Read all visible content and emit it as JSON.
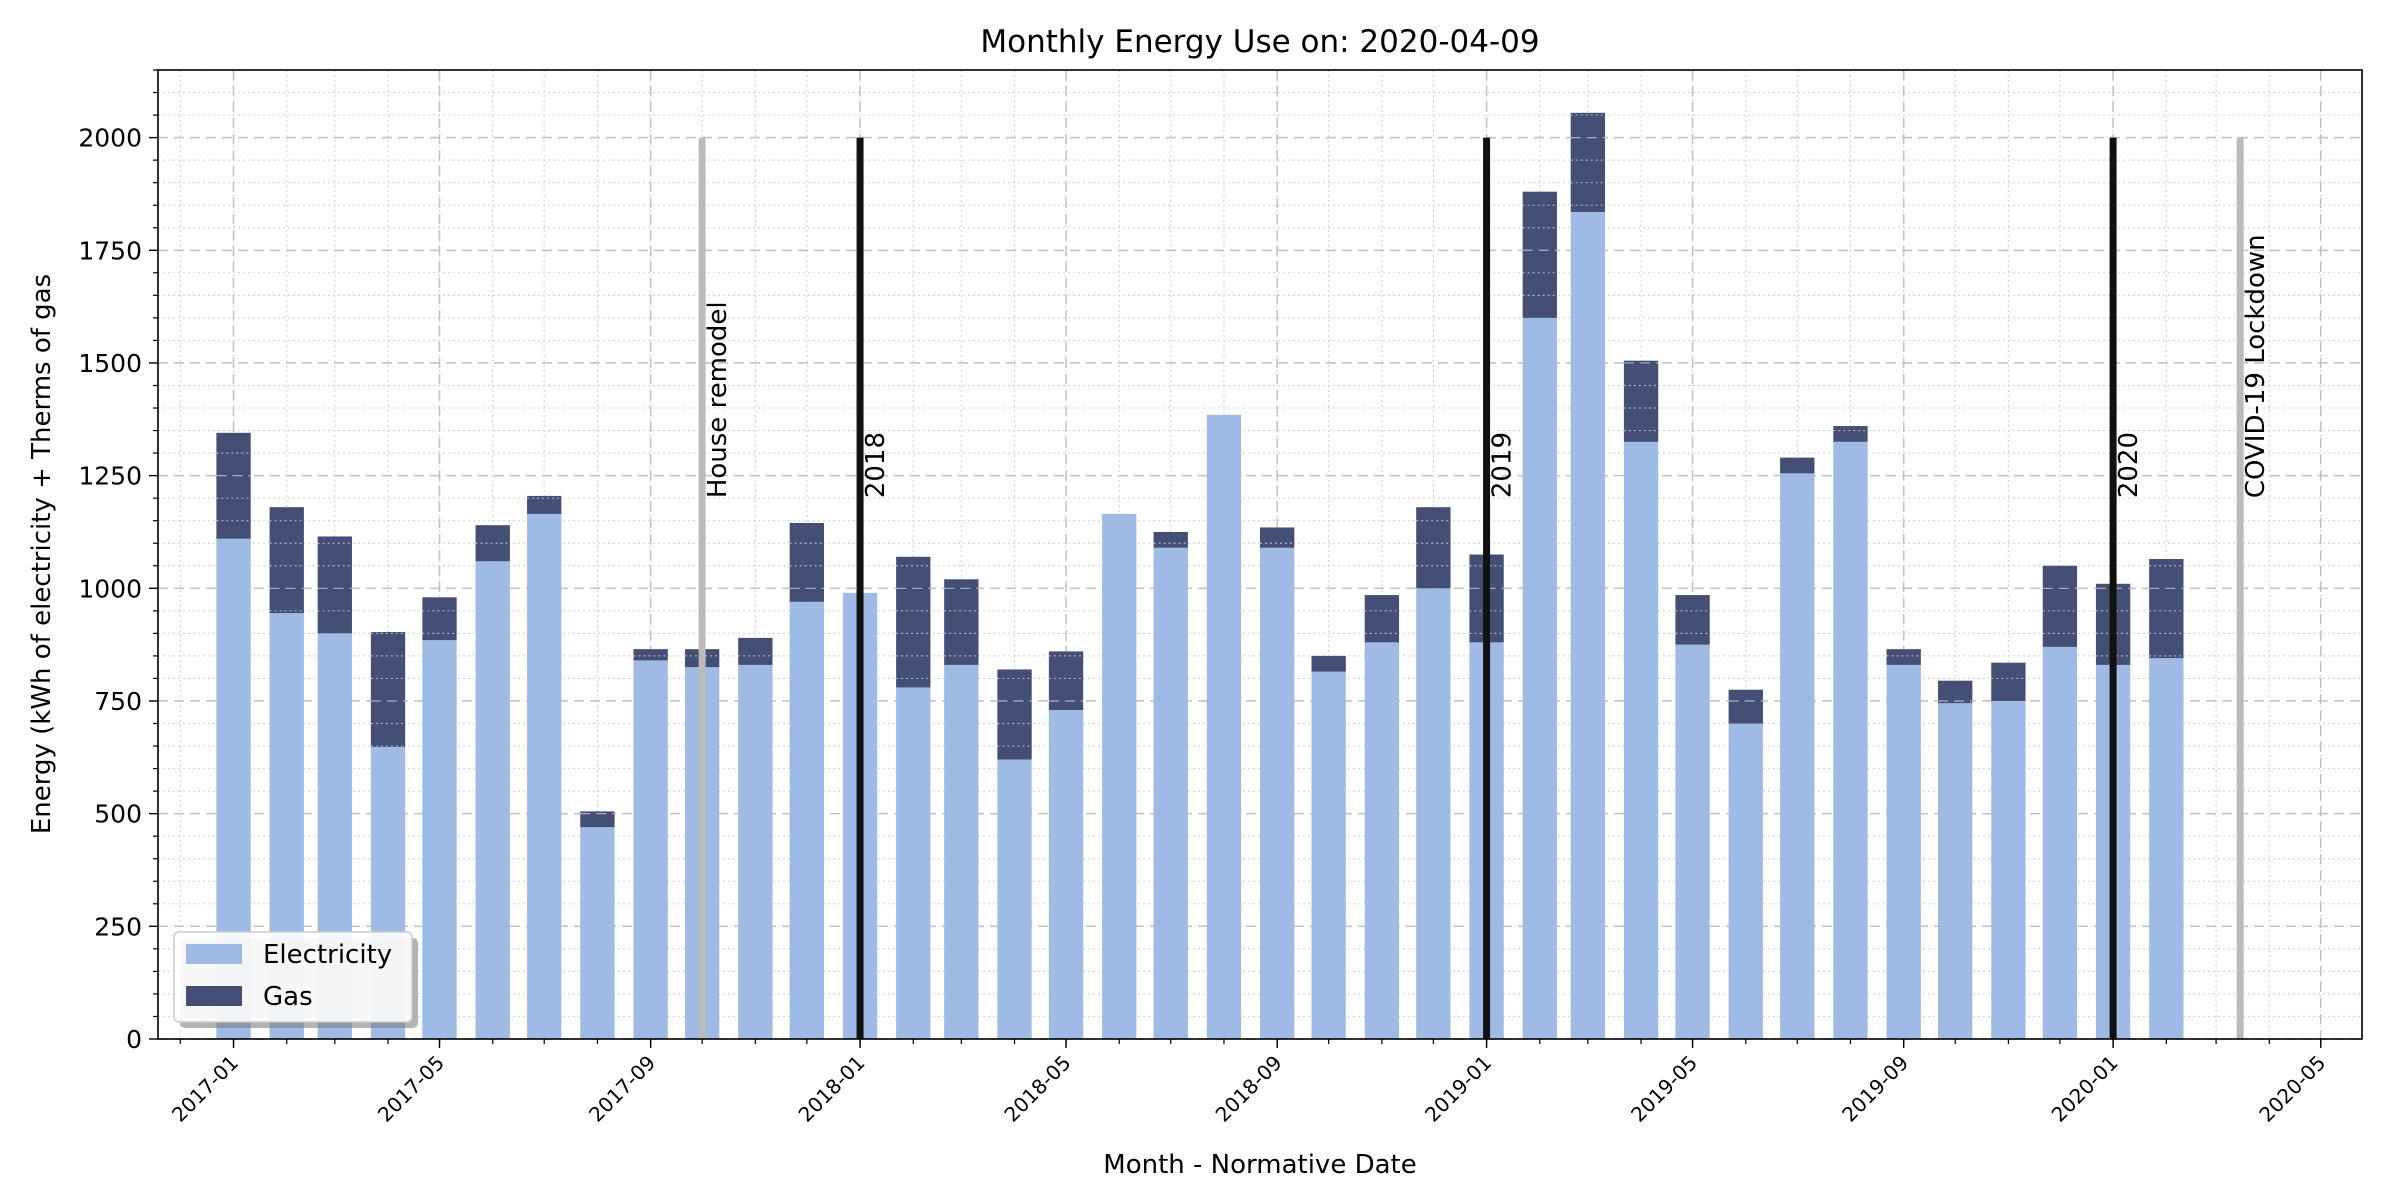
{
  "chart_data": {
    "type": "bar",
    "stacked": true,
    "title": "Monthly Energy Use on: 2020-04-09",
    "xlabel": "Month - Normative Date",
    "ylabel": "Energy (kWh of electricity + Therms of gas",
    "ylim": [
      0,
      2150
    ],
    "yticks": [
      0,
      250,
      500,
      750,
      1000,
      1250,
      1500,
      1750,
      2000
    ],
    "xlim": [
      "2016-11-18",
      "2020-05-25"
    ],
    "xticks": [
      "2017-01",
      "2017-05",
      "2017-09",
      "2018-01",
      "2018-05",
      "2018-09",
      "2019-01",
      "2019-05",
      "2019-09",
      "2020-01",
      "2020-05"
    ],
    "grid": true,
    "legend_position": "lower-left",
    "categories": [
      "2017-01",
      "2017-02",
      "2017-03",
      "2017-04",
      "2017-05",
      "2017-06",
      "2017-07",
      "2017-08",
      "2017-09",
      "2017-10",
      "2017-11",
      "2017-12",
      "2018-01",
      "2018-02",
      "2018-03",
      "2018-04",
      "2018-05",
      "2018-06",
      "2018-07",
      "2018-08",
      "2018-09",
      "2018-10",
      "2018-11",
      "2018-12",
      "2019-01",
      "2019-02",
      "2019-03",
      "2019-04",
      "2019-05",
      "2019-06",
      "2019-07",
      "2019-08",
      "2019-09",
      "2019-10",
      "2019-11",
      "2019-12",
      "2020-01",
      "2020-02"
    ],
    "series": [
      {
        "name": "Electricity",
        "color": "#a0bae6",
        "values": [
          1110,
          945,
          900,
          648,
          885,
          1060,
          1165,
          470,
          840,
          825,
          830,
          970,
          990,
          780,
          830,
          620,
          730,
          1165,
          1090,
          1385,
          1090,
          815,
          880,
          1000,
          880,
          1600,
          1835,
          1325,
          875,
          700,
          1255,
          1325,
          830,
          745,
          750,
          870,
          830,
          845
        ]
      },
      {
        "name": "Gas",
        "color": "#454f75",
        "values": [
          235,
          235,
          215,
          255,
          95,
          80,
          40,
          35,
          25,
          40,
          60,
          175,
          0,
          290,
          190,
          200,
          130,
          0,
          35,
          0,
          45,
          35,
          105,
          180,
          195,
          280,
          220,
          180,
          110,
          75,
          35,
          35,
          35,
          50,
          85,
          180,
          180,
          220
        ]
      }
    ],
    "annotations": [
      {
        "label": "House remodel",
        "date": "2017-10-01",
        "color": "#bbbbbb"
      },
      {
        "label": "2018",
        "date": "2018-01-01",
        "color": "#111111"
      },
      {
        "label": "2019",
        "date": "2019-01-01",
        "color": "#111111"
      },
      {
        "label": "2020",
        "date": "2020-01-01",
        "color": "#111111"
      },
      {
        "label": "COVID-19 Lockdown",
        "date": "2020-03-15",
        "color": "#bbbbbb"
      }
    ],
    "annotation_top": 2000
  }
}
